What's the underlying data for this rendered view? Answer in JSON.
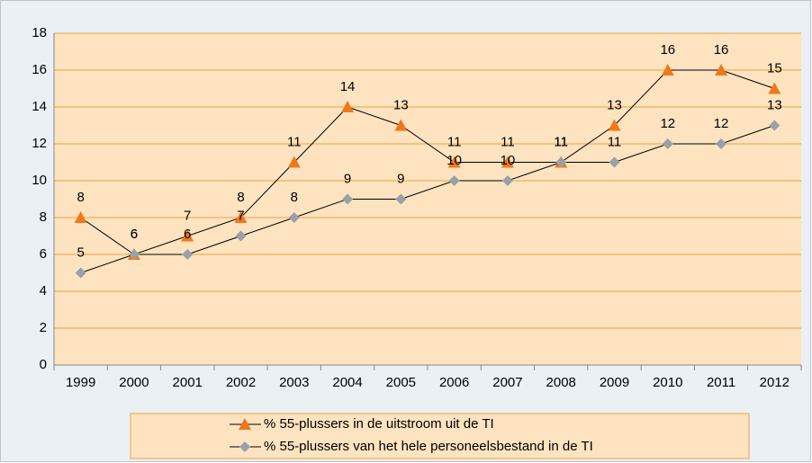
{
  "chart_data": {
    "type": "line",
    "categories": [
      "1999",
      "2000",
      "2001",
      "2002",
      "2003",
      "2004",
      "2005",
      "2006",
      "2007",
      "2008",
      "2009",
      "2010",
      "2011",
      "2012"
    ],
    "series": [
      {
        "name": "% 55-plussers in de uitstroom uit de TI",
        "color": "#f07818",
        "marker": "triangle",
        "values": [
          8,
          6,
          7,
          8,
          11,
          14,
          13,
          11,
          11,
          11,
          13,
          16,
          16,
          15
        ]
      },
      {
        "name": "% 55-plussers van het hele personeelsbestand in de TI",
        "color": "#9aa0a8",
        "marker": "diamond",
        "values": [
          5,
          6,
          6,
          7,
          8,
          9,
          9,
          10,
          10,
          11,
          11,
          12,
          12,
          13
        ]
      }
    ],
    "ylim": [
      0,
      18
    ],
    "yticks": [
      0,
      2,
      4,
      6,
      8,
      10,
      12,
      14,
      16,
      18
    ],
    "grid": true,
    "legend": "bottom"
  }
}
